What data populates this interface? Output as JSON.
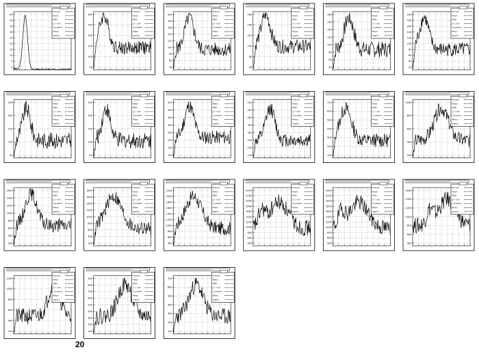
{
  "page": {
    "number": "20"
  },
  "stat_labels": [
    "Entries",
    "Mean",
    "RMS",
    "χ² / ndf",
    "Constant",
    "Mean",
    "Sigma"
  ],
  "chart_data": [
    {
      "type": "line",
      "panel": 1,
      "yticks": [
        "45",
        "40",
        "35",
        "30",
        "25",
        "20",
        "15",
        "10",
        "5",
        "0"
      ],
      "peak_x": 0.2,
      "width": 0.04,
      "shape": "narrow",
      "noise": 0.03,
      "baseline": 0.0
    },
    {
      "type": "line",
      "panel": 2,
      "yticks": [
        "300",
        "250",
        "200",
        "150",
        "100",
        "50"
      ],
      "peak_x": 0.18,
      "width": 0.08,
      "shape": "broad",
      "noise": 0.12,
      "baseline": 0.38
    },
    {
      "type": "line",
      "panel": 3,
      "yticks": [
        "200",
        "180",
        "160",
        "140",
        "120",
        "100",
        "80",
        "60",
        "40"
      ],
      "peak_x": 0.28,
      "width": 0.08,
      "shape": "broad",
      "noise": 0.12,
      "baseline": 0.35
    },
    {
      "type": "line",
      "panel": 4,
      "yticks": [
        "160",
        "140",
        "120",
        "100",
        "80",
        "60"
      ],
      "peak_x": 0.22,
      "width": 0.08,
      "shape": "broad",
      "noise": 0.12,
      "baseline": 0.4
    },
    {
      "type": "line",
      "panel": 5,
      "yticks": [
        "180",
        "160",
        "140",
        "120",
        "100",
        "80",
        "60",
        "40"
      ],
      "peak_x": 0.28,
      "width": 0.08,
      "shape": "broad",
      "noise": 0.14,
      "baseline": 0.35
    },
    {
      "type": "line",
      "panel": 6,
      "yticks": [
        "200",
        "180",
        "160",
        "140",
        "120",
        "100",
        "80",
        "60",
        "40",
        "20"
      ],
      "peak_x": 0.2,
      "width": 0.08,
      "shape": "broad",
      "noise": 0.12,
      "baseline": 0.35
    },
    {
      "type": "line",
      "panel": 7,
      "yticks": [
        "250",
        "200",
        "150",
        "100",
        "50"
      ],
      "peak_x": 0.22,
      "width": 0.07,
      "shape": "broad",
      "noise": 0.14,
      "baseline": 0.3
    },
    {
      "type": "line",
      "panel": 8,
      "yticks": [
        "250",
        "200",
        "150",
        "100",
        "50"
      ],
      "peak_x": 0.22,
      "width": 0.07,
      "shape": "broad",
      "noise": 0.14,
      "baseline": 0.3
    },
    {
      "type": "line",
      "panel": 9,
      "yticks": [
        "450",
        "400",
        "350",
        "300",
        "250",
        "200",
        "150",
        "100"
      ],
      "peak_x": 0.28,
      "width": 0.08,
      "shape": "broad",
      "noise": 0.12,
      "baseline": 0.35
    },
    {
      "type": "line",
      "panel": 10,
      "yticks": [
        "500",
        "450",
        "400",
        "350",
        "300",
        "250",
        "200",
        "150"
      ],
      "peak_x": 0.3,
      "width": 0.08,
      "shape": "broad",
      "noise": 0.12,
      "baseline": 0.3
    },
    {
      "type": "line",
      "panel": 11,
      "yticks": [
        "700",
        "600",
        "500",
        "400",
        "300",
        "200",
        "100"
      ],
      "peak_x": 0.22,
      "width": 0.1,
      "shape": "broad",
      "noise": 0.12,
      "baseline": 0.3
    },
    {
      "type": "line",
      "panel": 12,
      "yticks": [
        "1000",
        "800",
        "600",
        "400",
        "200"
      ],
      "peak_x": 0.5,
      "width": 0.12,
      "shape": "broad",
      "noise": 0.12,
      "baseline": 0.3
    },
    {
      "type": "line",
      "panel": 13,
      "yticks": [
        "1600",
        "1400",
        "1200",
        "1000",
        "800",
        "600",
        "400",
        "200"
      ],
      "peak_x": 0.3,
      "width": 0.1,
      "shape": "broad",
      "noise": 0.12,
      "baseline": 0.35
    },
    {
      "type": "line",
      "panel": 14,
      "yticks": [
        "1800",
        "1600",
        "1400",
        "1200",
        "1000",
        "800",
        "600",
        "400",
        "200"
      ],
      "peak_x": 0.35,
      "width": 0.14,
      "shape": "broad",
      "noise": 0.12,
      "baseline": 0.3
    },
    {
      "type": "line",
      "panel": 15,
      "yticks": [
        "2200",
        "2000",
        "1800",
        "1600",
        "1400",
        "1200",
        "1000",
        "800",
        "600",
        "400"
      ],
      "peak_x": 0.35,
      "width": 0.14,
      "shape": "broad",
      "noise": 0.12,
      "baseline": 0.3
    },
    {
      "type": "line",
      "panel": 16,
      "yticks": [
        "2400",
        "2200",
        "2000",
        "1800",
        "1600",
        "1400",
        "1200",
        "1000",
        "800",
        "600",
        "400"
      ],
      "peak_x": 0.45,
      "width": 0.16,
      "shape": "double",
      "noise": 0.14,
      "baseline": 0.3
    },
    {
      "type": "line",
      "panel": 17,
      "yticks": [
        "2400",
        "2200",
        "2000",
        "1800",
        "1600",
        "1400",
        "1200",
        "1000",
        "800",
        "600",
        "400"
      ],
      "peak_x": 0.45,
      "width": 0.16,
      "shape": "double",
      "noise": 0.14,
      "baseline": 0.3
    },
    {
      "type": "line",
      "panel": 18,
      "yticks": [
        "1600",
        "1400",
        "1200",
        "1000",
        "800",
        "600",
        "400"
      ],
      "peak_x": 0.6,
      "width": 0.14,
      "shape": "double",
      "noise": 0.14,
      "baseline": 0.35
    },
    {
      "type": "line",
      "panel": 19,
      "yticks": [
        "1200",
        "1000",
        "800",
        "600",
        "400",
        "200"
      ],
      "peak_x": 0.7,
      "width": 0.1,
      "shape": "broad",
      "noise": 0.14,
      "baseline": 0.3
    },
    {
      "type": "line",
      "panel": 20,
      "yticks": [
        "900",
        "800",
        "700",
        "600",
        "500",
        "400",
        "300",
        "200",
        "100"
      ],
      "peak_x": 0.55,
      "width": 0.12,
      "shape": "broad",
      "noise": 0.14,
      "baseline": 0.3
    },
    {
      "type": "line",
      "panel": 21,
      "yticks": [
        "700",
        "600",
        "500",
        "400",
        "300",
        "200",
        "100"
      ],
      "peak_x": 0.4,
      "width": 0.12,
      "shape": "broad",
      "noise": 0.14,
      "baseline": 0.3
    }
  ]
}
